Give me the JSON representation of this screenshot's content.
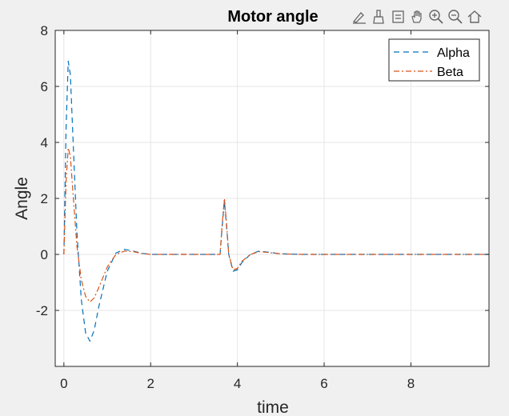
{
  "chart_data": {
    "type": "line",
    "title": "Motor angle",
    "xlabel": "time",
    "ylabel": "Angle",
    "xlim": [
      -0.2,
      9.8
    ],
    "ylim": [
      -4,
      8
    ],
    "xticks": [
      0,
      2,
      4,
      6,
      8
    ],
    "yticks": [
      -2,
      0,
      2,
      4,
      6,
      8
    ],
    "grid": true,
    "legend_position": "top-right",
    "series": [
      {
        "name": "Alpha",
        "style": "dashed",
        "color": "#0072bd",
        "x": [
          0,
          0.05,
          0.1,
          0.15,
          0.2,
          0.3,
          0.4,
          0.5,
          0.6,
          0.7,
          0.8,
          1.0,
          1.2,
          1.4,
          1.6,
          1.8,
          2.0,
          2.5,
          3.0,
          3.6,
          3.65,
          3.7,
          3.75,
          3.8,
          3.9,
          4.0,
          4.1,
          4.3,
          4.5,
          4.7,
          5.0,
          5.5,
          6.0,
          9.8
        ],
        "y": [
          0,
          4.5,
          6.9,
          6.4,
          4.5,
          0.8,
          -1.6,
          -2.8,
          -3.1,
          -2.7,
          -1.9,
          -0.6,
          0.05,
          0.18,
          0.12,
          0.04,
          0,
          0,
          0,
          0,
          1.0,
          1.9,
          1.0,
          0,
          -0.6,
          -0.55,
          -0.3,
          0,
          0.12,
          0.08,
          0.02,
          0,
          0,
          0
        ]
      },
      {
        "name": "Beta",
        "style": "dashdot",
        "color": "#d95319",
        "x": [
          0,
          0.05,
          0.1,
          0.15,
          0.2,
          0.3,
          0.4,
          0.5,
          0.6,
          0.7,
          0.8,
          1.0,
          1.2,
          1.4,
          1.6,
          1.8,
          2.0,
          2.5,
          3.0,
          3.6,
          3.65,
          3.7,
          3.75,
          3.8,
          3.9,
          4.0,
          4.1,
          4.3,
          4.5,
          4.7,
          5.0,
          5.5,
          6.0,
          9.8
        ],
        "y": [
          0,
          2.6,
          3.8,
          3.5,
          2.4,
          0.3,
          -0.9,
          -1.5,
          -1.7,
          -1.55,
          -1.2,
          -0.45,
          0,
          0.12,
          0.1,
          0.03,
          0,
          0,
          0,
          0,
          1.1,
          2.0,
          1.1,
          0,
          -0.55,
          -0.5,
          -0.25,
          0,
          0.1,
          0.07,
          0.02,
          0,
          0,
          0
        ]
      }
    ]
  },
  "toolbar": {
    "icons": [
      "data-tips-icon",
      "brush-icon",
      "link-icon",
      "pan-icon",
      "zoom-in-icon",
      "zoom-out-icon",
      "home-icon"
    ]
  }
}
